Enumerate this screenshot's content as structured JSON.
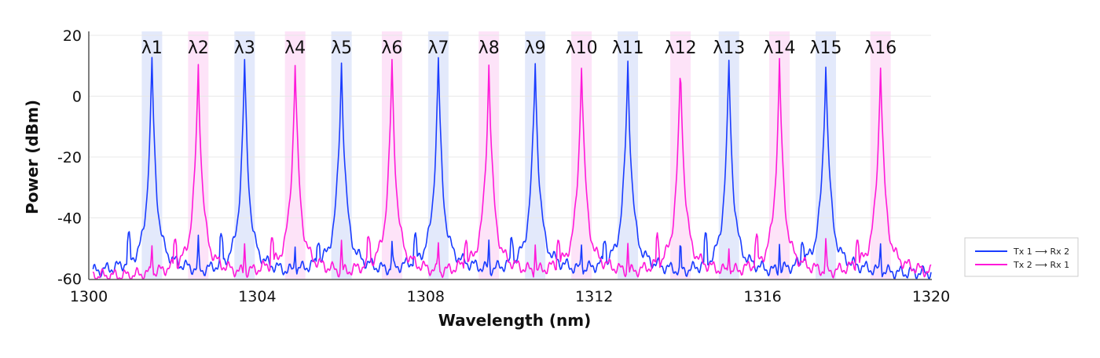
{
  "chart_data": {
    "type": "line",
    "xlabel": "Wavelength (nm)",
    "ylabel": "Power (dBm)",
    "xlim": [
      1300,
      1320
    ],
    "ylim": [
      -60,
      20
    ],
    "xticks": [
      "1300",
      "1304",
      "1308",
      "1312",
      "1316",
      "1320"
    ],
    "yticks": [
      "20",
      "0",
      "-20",
      "-40",
      "-60"
    ],
    "grid": "horizontal",
    "legend_position": "right",
    "channel_labels": [
      "λ1",
      "λ2",
      "λ3",
      "λ4",
      "λ5",
      "λ6",
      "λ7",
      "λ8",
      "λ9",
      "λ10",
      "λ11",
      "λ12",
      "λ13",
      "λ14",
      "λ15",
      "λ16"
    ],
    "channel_band_colors": {
      "odd": "#e3e9fb",
      "even": "#fde3f8"
    },
    "series": [
      {
        "name": "Tx 1 ⟶ Rx 2",
        "color": "#1a3cff",
        "peak_wavelengths_nm": [
          1301.5,
          1303.7,
          1306.0,
          1308.3,
          1310.6,
          1312.8,
          1315.2,
          1317.5
        ],
        "peak_power_dbm": [
          11.5,
          11,
          11.5,
          12,
          11.5,
          11.5,
          11,
          11.5
        ]
      },
      {
        "name": "Tx 2 ⟶ Rx 1",
        "color": "#ff19d9",
        "peak_wavelengths_nm": [
          1302.6,
          1304.9,
          1307.2,
          1309.5,
          1311.7,
          1314.05,
          1316.4,
          1318.8
        ],
        "peak_power_dbm": [
          10.5,
          11,
          11,
          11,
          11,
          11,
          11,
          11
        ]
      }
    ]
  }
}
